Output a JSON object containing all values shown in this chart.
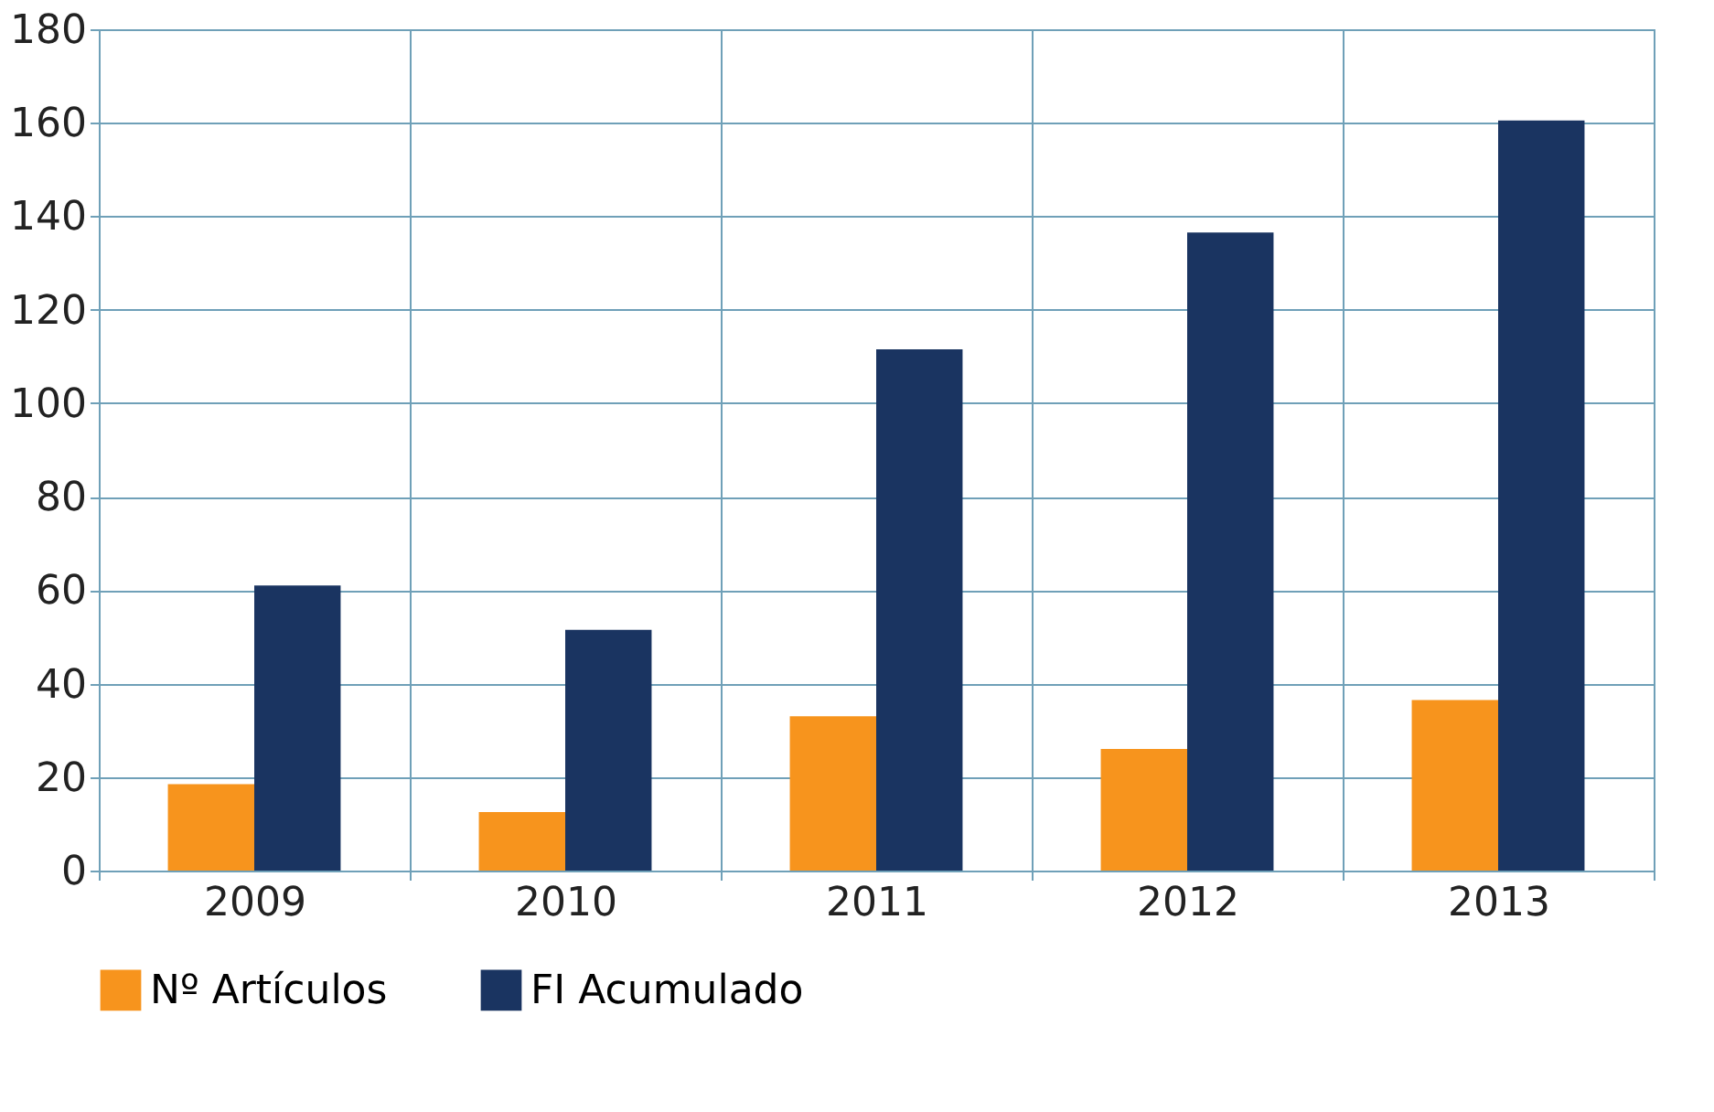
{
  "chart_data": {
    "type": "bar",
    "categories": [
      "2009",
      "2010",
      "2011",
      "2012",
      "2013"
    ],
    "series": [
      {
        "name": "Nº Artículos",
        "color": "#f7941d",
        "values": [
          18.5,
          12.5,
          33,
          26,
          36.5
        ]
      },
      {
        "name": "FI Acumulado",
        "color": "#1a3461",
        "values": [
          61,
          51.5,
          111.5,
          136.5,
          160.5
        ]
      }
    ],
    "ylim": [
      0,
      180
    ],
    "yticks": [
      0,
      20,
      40,
      60,
      80,
      100,
      120,
      140,
      160,
      180
    ],
    "grid": true,
    "legend": "bottom left"
  }
}
